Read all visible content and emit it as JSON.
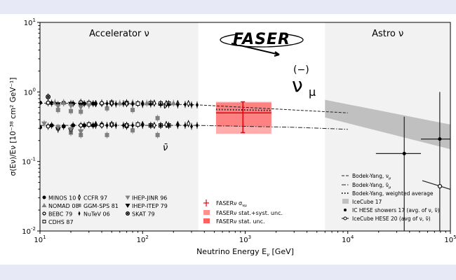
{
  "chart_data": {
    "type": "scatter",
    "title": "",
    "xlabel": "Neutrino Energy E",
    "xlabel_sub": "ν",
    "xlabel_unit": " [GeV]",
    "ylabel": "σ(E_ν)/E_ν [10^-38 cm^2 GeV^-1]",
    "xscale": "log",
    "yscale": "log",
    "xlim": [
      10,
      100000
    ],
    "ylim": [
      0.01,
      10
    ],
    "x_tick_labels": [
      "10^1",
      "10^2",
      "10^3",
      "10^4",
      "10^5"
    ],
    "y_tick_labels": [
      "10^-2",
      "10^-1",
      "10^0",
      "10^1"
    ],
    "grid": false,
    "regions": [
      {
        "label": "Accelerator ν",
        "range": [
          10,
          350
        ],
        "color": "#f2f2f2"
      },
      {
        "label": "",
        "range": [
          350,
          6000
        ],
        "color": "#ffffff"
      },
      {
        "label": "Astro ν",
        "range": [
          6000,
          100000
        ],
        "color": "#f2f2f2"
      }
    ],
    "annotations": {
      "nu": "ν",
      "nubar": "ν̄",
      "faser_logo": "FASER",
      "faser_nu_paren": "(−)",
      "faser_nu": "ν",
      "faser_nu_sub": "μ"
    },
    "accelerator_experiments": [
      {
        "name": "MINOS 10",
        "marker": "circle-filled",
        "color": "#000000",
        "nu": {
          "E": [
            10,
            13,
            17,
            21,
            27,
            33,
            40,
            50
          ],
          "v": [
            0.7,
            0.69,
            0.7,
            0.68,
            0.68,
            0.68,
            0.68,
            0.68
          ]
        },
        "nubar": {
          "E": [
            10,
            13,
            17,
            21,
            27,
            33,
            40,
            50
          ],
          "v": [
            0.31,
            0.33,
            0.32,
            0.33,
            0.33,
            0.33,
            0.34,
            0.34
          ]
        }
      },
      {
        "name": "NOMAD 08",
        "marker": "triangle-up",
        "color": "#808080",
        "nu": {
          "E": [
            12,
            14,
            17,
            20,
            25,
            30,
            40,
            60,
            80,
            110,
            150,
            200
          ],
          "v": [
            0.7,
            0.71,
            0.7,
            0.69,
            0.7,
            0.69,
            0.7,
            0.69,
            0.7,
            0.69,
            0.68,
            0.69
          ]
        },
        "nubar": {
          "E": [],
          "v": []
        }
      },
      {
        "name": "BEBC 79",
        "marker": "circle-open",
        "color": "#000000",
        "nu": {
          "E": [
            12,
            25,
            40,
            70
          ],
          "v": [
            0.7,
            0.71,
            0.69,
            0.7
          ]
        },
        "nubar": {
          "E": [
            12,
            25,
            40,
            70
          ],
          "v": [
            0.32,
            0.33,
            0.33,
            0.32
          ]
        }
      },
      {
        "name": "CDHS 87",
        "marker": "square-open",
        "color": "#000000",
        "nu": {
          "E": [
            30,
            50,
            70,
            90,
            120,
            150,
            180
          ],
          "v": [
            0.69,
            0.7,
            0.69,
            0.68,
            0.69,
            0.68,
            0.68
          ]
        },
        "nubar": {
          "E": [
            30,
            50,
            70,
            90,
            120,
            150,
            180
          ],
          "v": [
            0.34,
            0.34,
            0.33,
            0.34,
            0.33,
            0.33,
            0.33
          ]
        }
      },
      {
        "name": "CCFR 97",
        "marker": "diamond-open",
        "color": "#000000",
        "nu": {
          "E": [
            35,
            50,
            70,
            100,
            130,
            170,
            220,
            280
          ],
          "v": [
            0.68,
            0.69,
            0.68,
            0.68,
            0.69,
            0.68,
            0.68,
            0.68
          ]
        },
        "nubar": {
          "E": [
            35,
            50,
            70,
            100,
            130,
            170,
            220,
            280
          ],
          "v": [
            0.34,
            0.34,
            0.33,
            0.34,
            0.33,
            0.34,
            0.34,
            0.35
          ]
        }
      },
      {
        "name": "GGM-SPS 81",
        "marker": "square-filled",
        "color": "#808080",
        "nu": {
          "E": [
            15,
            20,
            25,
            45,
            80,
            140
          ],
          "v": [
            0.55,
            0.53,
            0.52,
            0.58,
            0.55,
            0.42
          ]
        },
        "nubar": {
          "E": [
            15,
            20,
            25,
            45,
            80,
            140
          ],
          "v": [
            0.3,
            0.26,
            0.24,
            0.24,
            0.28,
            0.24
          ]
        }
      },
      {
        "name": "NuTeV 06",
        "marker": "diamond-filled",
        "color": "#000000",
        "nu": {
          "E": [
            35,
            45,
            55,
            65,
            80,
            100,
            120,
            150,
            180,
            220,
            260,
            300,
            340
          ],
          "v": [
            0.68,
            0.68,
            0.67,
            0.68,
            0.67,
            0.66,
            0.67,
            0.66,
            0.66,
            0.65,
            0.66,
            0.65,
            0.65
          ]
        },
        "nubar": {
          "E": [
            35,
            45,
            55,
            65,
            80,
            100,
            120,
            150,
            180,
            220,
            260,
            300,
            340
          ],
          "v": [
            0.33,
            0.33,
            0.33,
            0.33,
            0.33,
            0.33,
            0.33,
            0.33,
            0.33,
            0.33,
            0.33,
            0.32,
            0.33
          ]
        }
      },
      {
        "name": "IHEP-ITEP 79",
        "marker": "triangle-down-filled",
        "color": "#000000",
        "nu": {
          "E": [
            15,
            20,
            25
          ],
          "v": [
            0.66,
            0.67,
            0.65
          ]
        },
        "nubar": {
          "E": [
            15,
            20,
            25
          ],
          "v": [
            0.29,
            0.28,
            0.27
          ]
        }
      },
      {
        "name": "IHEP-JINR 96",
        "marker": "triangle-down",
        "color": "#808080",
        "nu": {
          "E": [
            15,
            20,
            25,
            30
          ],
          "v": [
            0.62,
            0.63,
            0.6,
            0.64
          ]
        },
        "nubar": {
          "E": [
            11,
            15,
            20,
            25
          ],
          "v": [
            0.35,
            0.31,
            0.29,
            0.27
          ]
        }
      },
      {
        "name": "SKAT 79",
        "marker": "circle-cross",
        "color": "#000000",
        "nu": {
          "E": [
            12
          ],
          "v": [
            0.85
          ]
        },
        "nubar": {
          "E": [],
          "v": []
        }
      }
    ],
    "theory_curves": [
      {
        "name": "Bodek-Yang, ν",
        "name_sub": "μ",
        "style": "dashed",
        "E": [
          10,
          100,
          350,
          1000,
          3000,
          10000
        ],
        "v": [
          0.69,
          0.68,
          0.65,
          0.6,
          0.55,
          0.5
        ]
      },
      {
        "name": "Bodek-Yang, ν̄",
        "name_sub": "μ",
        "style": "dashdot",
        "E": [
          10,
          100,
          350,
          1000,
          3000,
          10000
        ],
        "v": [
          0.33,
          0.33,
          0.33,
          0.32,
          0.31,
          0.29
        ]
      },
      {
        "name": "Bodek-Yang, weighted average",
        "style": "dotted",
        "E": [
          520,
          1000,
          1800
        ],
        "v": [
          0.56,
          0.55,
          0.54
        ]
      }
    ],
    "faser": {
      "measurement": {
        "name": "FASERν σ",
        "name_sub": "νμ",
        "E": 950,
        "v": 0.5,
        "v_low": 0.26,
        "v_high": 0.72,
        "color": "#e8000b"
      },
      "stat_syst_band": {
        "name": "FASERν stat.+syst. unc.",
        "E_range": [
          520,
          1800
        ],
        "v_range": [
          0.25,
          0.72
        ],
        "color": "#ff9090"
      },
      "stat_band": {
        "name": "FASERν stat. unc.",
        "E_range": [
          520,
          1800
        ],
        "v_range": [
          0.32,
          0.7
        ],
        "color": "#ff6060"
      }
    },
    "icecube17": {
      "name": "IceCube 17",
      "E": [
        6000,
        100000
      ],
      "v_low": [
        0.43,
        0.15
      ],
      "v_high": [
        0.77,
        0.34
      ],
      "color": "#c0c0c0"
    },
    "ic_hese_showers": {
      "name": "IC HESE showers 17 (avg. of ν, ν̄)",
      "points": [
        {
          "E": 35500,
          "v": 0.13,
          "E_low": 18800,
          "E_high": 51600,
          "v_low": 0.005,
          "v_high": 0.44
        },
        {
          "E": 78800,
          "v": 0.21,
          "E_low": 51600,
          "E_high": 100000,
          "v_low": 0.005,
          "v_high": 1.0
        }
      ]
    },
    "icecube_hese20": {
      "name": "IceCube HESE 20 (avg of ν, ν̄)",
      "E": 79000,
      "v": 0.044
    }
  }
}
